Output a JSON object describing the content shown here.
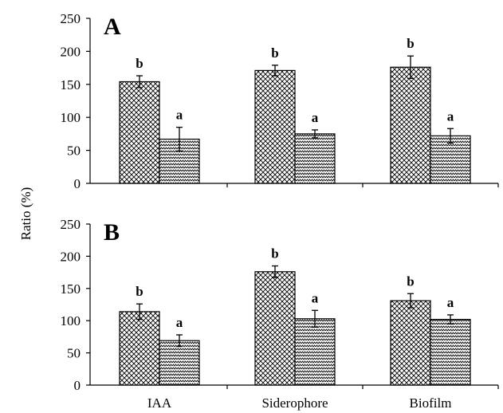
{
  "ylabel": "Ratio (%)",
  "chart_data": [
    {
      "type": "bar",
      "panel": "A",
      "categories": [
        "IAA",
        "Siderophore",
        "Biofilm"
      ],
      "series": [
        {
          "values": [
            154,
            171,
            176
          ],
          "errors": [
            9,
            8,
            17
          ],
          "labels": [
            "b",
            "b",
            "b"
          ],
          "pattern": "crosshatch"
        },
        {
          "values": [
            67,
            75,
            72
          ],
          "errors": [
            18,
            6,
            11
          ],
          "labels": [
            "a",
            "a",
            "a"
          ],
          "pattern": "zigzag"
        }
      ],
      "ylim": [
        0,
        250
      ],
      "yticks": [
        0,
        50,
        100,
        150,
        200,
        250
      ],
      "grid": false
    },
    {
      "type": "bar",
      "panel": "B",
      "categories": [
        "IAA",
        "Siderophore",
        "Biofilm"
      ],
      "series": [
        {
          "values": [
            114,
            176,
            131
          ],
          "errors": [
            12,
            9,
            11
          ],
          "labels": [
            "b",
            "b",
            "b"
          ],
          "pattern": "crosshatch"
        },
        {
          "values": [
            69,
            103,
            102
          ],
          "errors": [
            9,
            13,
            7
          ],
          "labels": [
            "a",
            "a",
            "a"
          ],
          "pattern": "zigzag"
        }
      ],
      "ylim": [
        0,
        250
      ],
      "yticks": [
        0,
        50,
        100,
        150,
        200,
        250
      ],
      "grid": false
    }
  ]
}
